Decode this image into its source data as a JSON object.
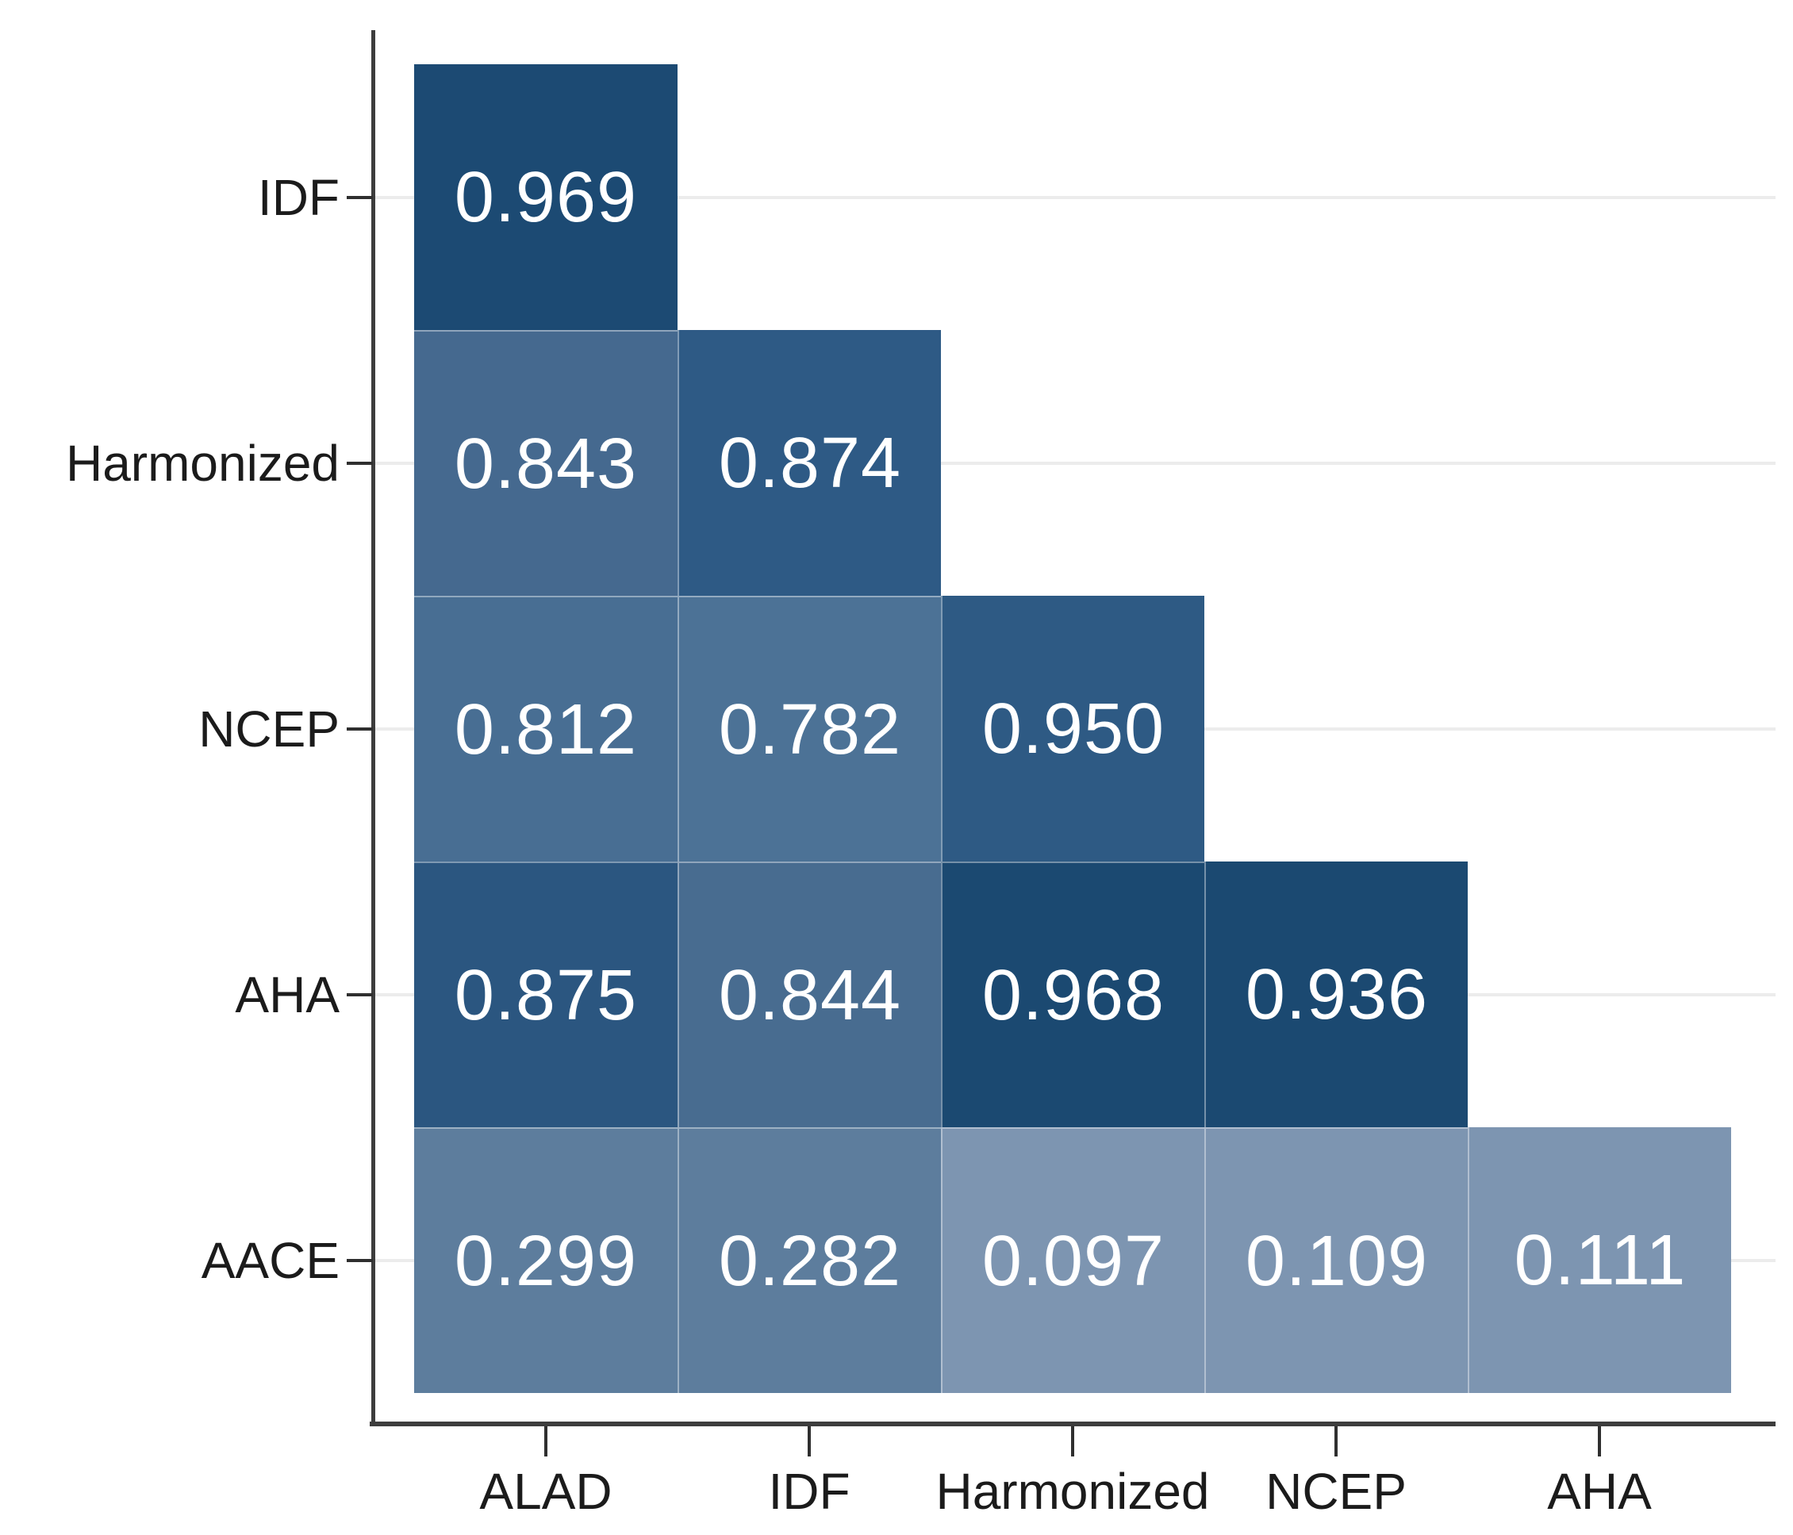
{
  "chart_data": {
    "type": "heatmap",
    "subtype": "lower-triangular-agreement-matrix",
    "title": "",
    "xlabel": "",
    "ylabel": "",
    "x_categories": [
      "ALAD",
      "IDF",
      "Harmonized",
      "NCEP",
      "AHA"
    ],
    "y_categories": [
      "IDF",
      "Harmonized",
      "NCEP",
      "AHA",
      "AACE"
    ],
    "rows": [
      {
        "label": "IDF",
        "values": [
          "0.969"
        ],
        "colors": [
          "#1c4a73"
        ]
      },
      {
        "label": "Harmonized",
        "values": [
          "0.843",
          "0.874"
        ],
        "colors": [
          "#45698f",
          "#2e5a85"
        ]
      },
      {
        "label": "NCEP",
        "values": [
          "0.812",
          "0.782",
          "0.950"
        ],
        "colors": [
          "#486e93",
          "#4c7296",
          "#2e5a84"
        ]
      },
      {
        "label": "AHA",
        "values": [
          "0.875",
          "0.844",
          "0.968",
          "0.936"
        ],
        "colors": [
          "#2b5680",
          "#486c90",
          "#1b4971",
          "#1b4971"
        ]
      },
      {
        "label": "AACE",
        "values": [
          "0.299",
          "0.282",
          "0.097",
          "0.109",
          "0.111"
        ],
        "colors": [
          "#5d7d9d",
          "#5d7d9d",
          "#7d95b1",
          "#7d95b1",
          "#7d95b1"
        ]
      }
    ],
    "value_label_color": "#ffffff",
    "axis_color": "#3d3d3d",
    "gridline_color": "#ececec",
    "cell_divider_color": "rgba(255,255,255,0.4)",
    "grid": true,
    "legend": "none"
  }
}
